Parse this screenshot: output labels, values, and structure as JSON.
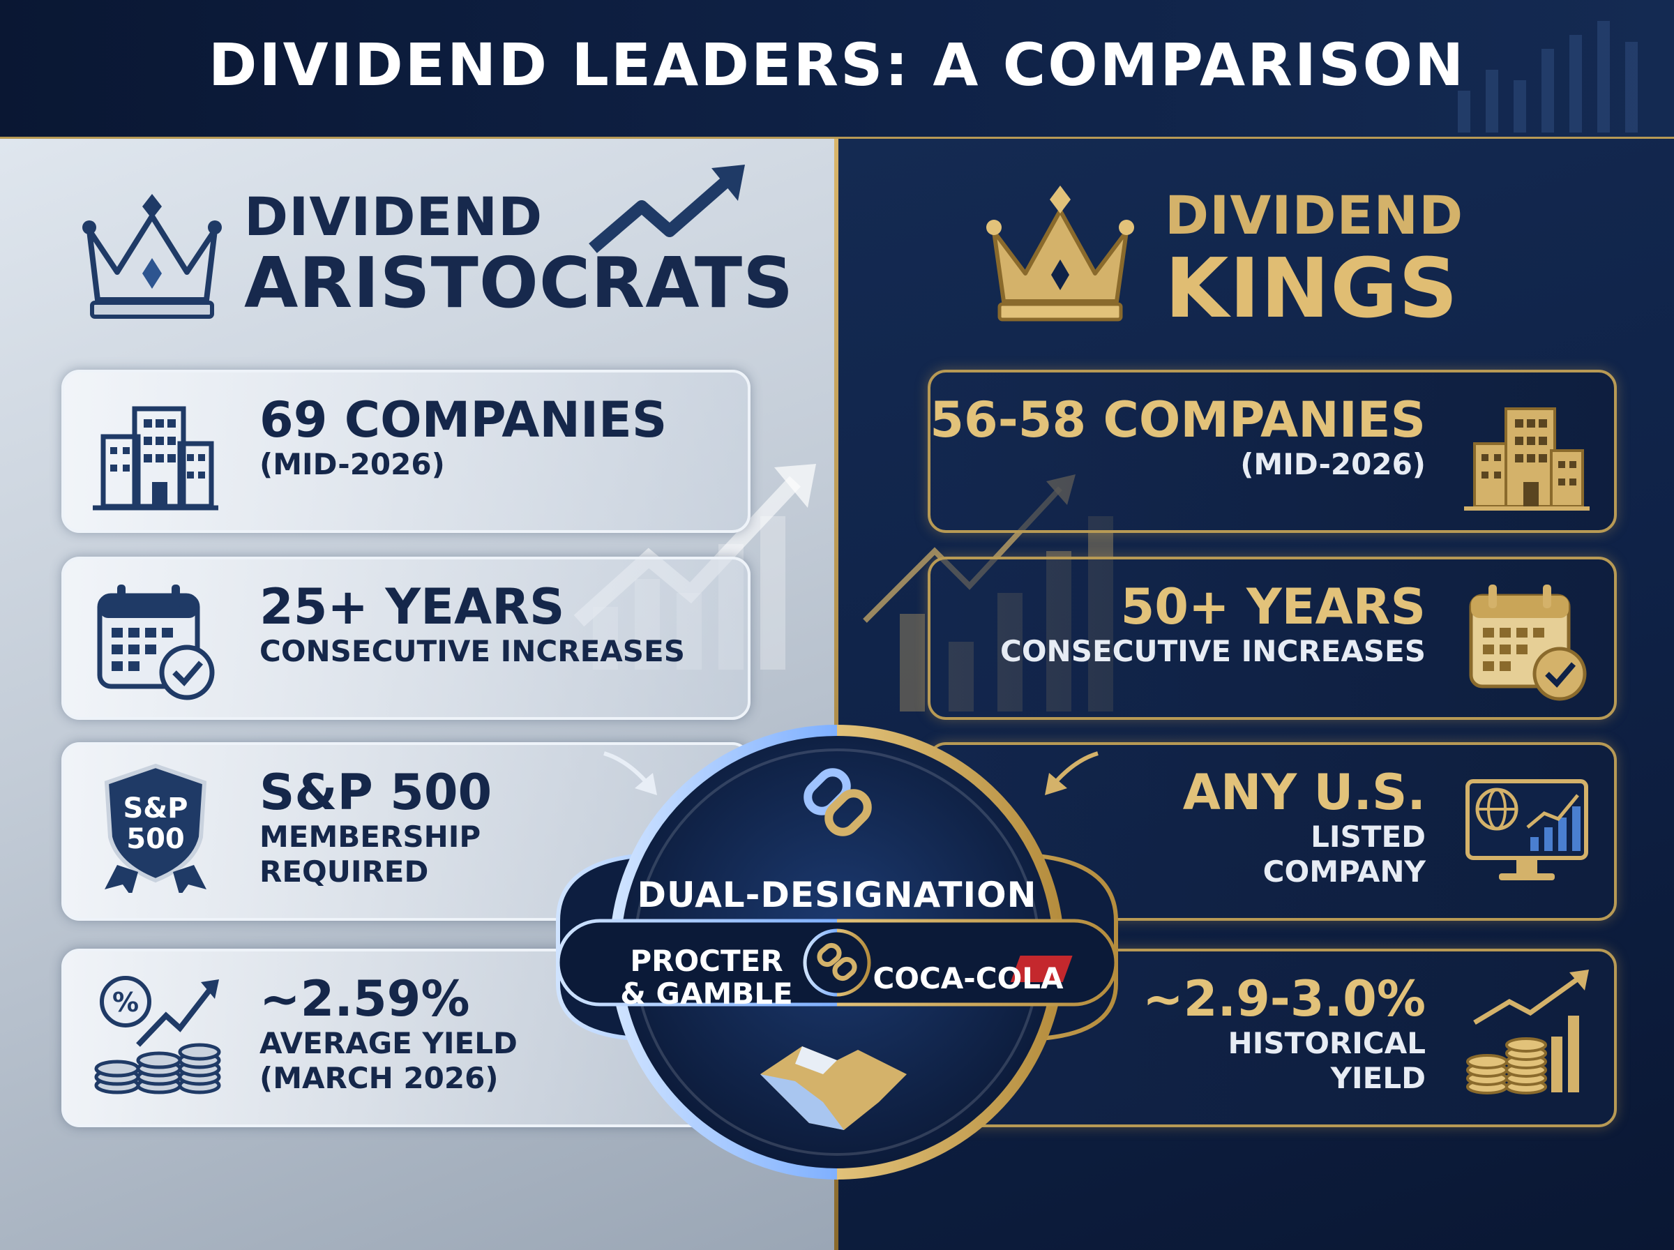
{
  "header": {
    "title": "DIVIDEND LEADERS: A COMPARISON"
  },
  "aristocrats": {
    "title_line1": "DIVIDEND",
    "title_line2": "ARISTOCRATS",
    "companies": {
      "value": "69 COMPANIES",
      "note": "(MID-2026)"
    },
    "years": {
      "value": "25+ YEARS",
      "note": "CONSECUTIVE INCREASES"
    },
    "membership": {
      "value": "S&P 500",
      "note_line1": "MEMBERSHIP",
      "note_line2": "REQUIRED",
      "badge_line1": "S&P",
      "badge_line2": "500"
    },
    "yield": {
      "value": "~2.59%",
      "note_line1": "AVERAGE YIELD",
      "note_line2": "(MARCH 2026)"
    }
  },
  "kings": {
    "title_line1": "DIVIDEND",
    "title_line2": "KINGS",
    "companies": {
      "value": "56-58 COMPANIES",
      "note": "(MID-2026)"
    },
    "years": {
      "value": "50+ YEARS",
      "note": "CONSECUTIVE INCREASES"
    },
    "listing": {
      "value": "ANY U.S.",
      "note_line1": "LISTED",
      "note_line2": "COMPANY"
    },
    "yield": {
      "value": "~2.9-3.0%",
      "note_line1": "HISTORICAL",
      "note_line2": "YIELD"
    }
  },
  "center": {
    "label": "DUAL-DESIGNATION",
    "company_left": [
      "PROCTER",
      "& GAMBLE"
    ],
    "company_right": "COCA-COLA"
  },
  "colors": {
    "navy": "#0f2247",
    "gold": "#d4b26a",
    "silver": "#c3ccd7",
    "ink": "#15274a"
  },
  "icons": [
    "crown-silver-icon",
    "crown-gold-icon",
    "building-icon",
    "calendar-check-icon",
    "shield-badge-icon",
    "coins-percent-icon",
    "globe-monitor-icon",
    "coins-chart-icon",
    "chain-link-icon",
    "handshake-icon",
    "trend-arrow-icon"
  ]
}
